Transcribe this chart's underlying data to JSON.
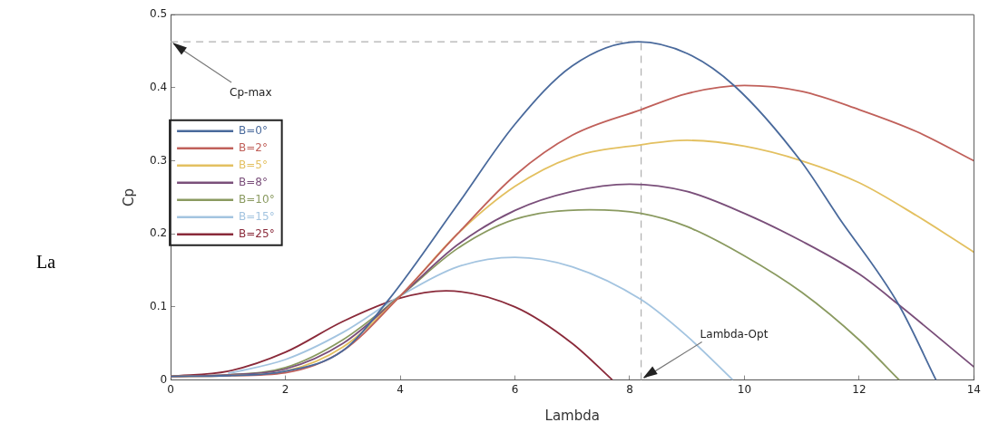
{
  "chart_data": {
    "type": "line",
    "xlabel": "Lambda",
    "ylabel": "Cp",
    "xlim": [
      0,
      14
    ],
    "xticks": [
      0,
      2,
      4,
      6,
      8,
      10,
      12,
      14
    ],
    "ylim": [
      0,
      0.5
    ],
    "yticks": [
      0,
      0.1,
      0.2,
      0.3,
      0.4,
      0.5
    ],
    "grid": false,
    "legend": "left",
    "marker": "none",
    "line_style": "solid",
    "series": [
      {
        "name": "B=0°",
        "color": "#4a6a9c",
        "x": [
          0,
          1,
          2,
          3,
          3.8,
          5,
          6,
          7,
          8.15,
          9,
          9.82,
          10.98,
          11.64,
          12.69,
          13.34
        ],
        "values": [
          0.005,
          0.006,
          0.012,
          0.04,
          0.11,
          0.24,
          0.35,
          0.43,
          0.463,
          0.447,
          0.403,
          0.3,
          0.223,
          0.103,
          0
        ]
      },
      {
        "name": "B=2°",
        "color": "#c0605a",
        "x": [
          0,
          1,
          2,
          3,
          4,
          5,
          6,
          7,
          8.2,
          9,
          10,
          11,
          12,
          13,
          14
        ],
        "values": [
          0.005,
          0.006,
          0.01,
          0.04,
          0.115,
          0.2,
          0.28,
          0.335,
          0.37,
          0.392,
          0.403,
          0.395,
          0.37,
          0.34,
          0.3
        ]
      },
      {
        "name": "B=5°",
        "color": "#e3c060",
        "x": [
          0,
          1,
          2,
          3,
          4,
          5,
          6,
          7,
          8.2,
          9,
          10,
          11,
          12,
          13,
          14
        ],
        "values": [
          0.005,
          0.006,
          0.012,
          0.045,
          0.115,
          0.2,
          0.265,
          0.305,
          0.322,
          0.328,
          0.32,
          0.3,
          0.27,
          0.225,
          0.175
        ]
      },
      {
        "name": "B=8°",
        "color": "#7a4f7a",
        "x": [
          0,
          1,
          2,
          3,
          4,
          5,
          6,
          7,
          8,
          9,
          10,
          11,
          12,
          12.69,
          14
        ],
        "values": [
          0.005,
          0.007,
          0.015,
          0.05,
          0.115,
          0.185,
          0.232,
          0.258,
          0.268,
          0.258,
          0.228,
          0.19,
          0.145,
          0.103,
          0.018
        ]
      },
      {
        "name": "B=10°",
        "color": "#8a9a60",
        "x": [
          0,
          1,
          2,
          3,
          4,
          5,
          6,
          7.3,
          8.2,
          9,
          10,
          11,
          12,
          12.7
        ],
        "values": [
          0.005,
          0.007,
          0.017,
          0.055,
          0.115,
          0.18,
          0.22,
          0.233,
          0.228,
          0.21,
          0.17,
          0.12,
          0.055,
          0
        ]
      },
      {
        "name": "B=15°",
        "color": "#a3c4e0",
        "x": [
          1,
          2,
          3,
          4,
          5,
          6,
          7,
          8.2,
          9,
          9.8
        ],
        "values": [
          0.009,
          0.028,
          0.065,
          0.115,
          0.155,
          0.168,
          0.155,
          0.11,
          0.06,
          0
        ]
      },
      {
        "name": "B=25°",
        "color": "#8a2a3a",
        "x": [
          0,
          1,
          2,
          3,
          4,
          4.8,
          6,
          7,
          7.7
        ],
        "values": [
          0.005,
          0.012,
          0.038,
          0.08,
          0.112,
          0.122,
          0.1,
          0.05,
          0
        ]
      }
    ],
    "ref_lines": [
      {
        "axis": "y",
        "value": 0.463,
        "color": "#b0b0b0",
        "line_style": "dashed"
      },
      {
        "axis": "x",
        "value": 8.2,
        "color": "#b0b0b0",
        "line_style": "dashed"
      }
    ],
    "annotations": [
      "La",
      {
        "text": "Cp-max",
        "x": 0,
        "y": 0.463
      },
      {
        "text": "Lambda-Opt",
        "x": 8.2,
        "y": 0
      }
    ]
  }
}
